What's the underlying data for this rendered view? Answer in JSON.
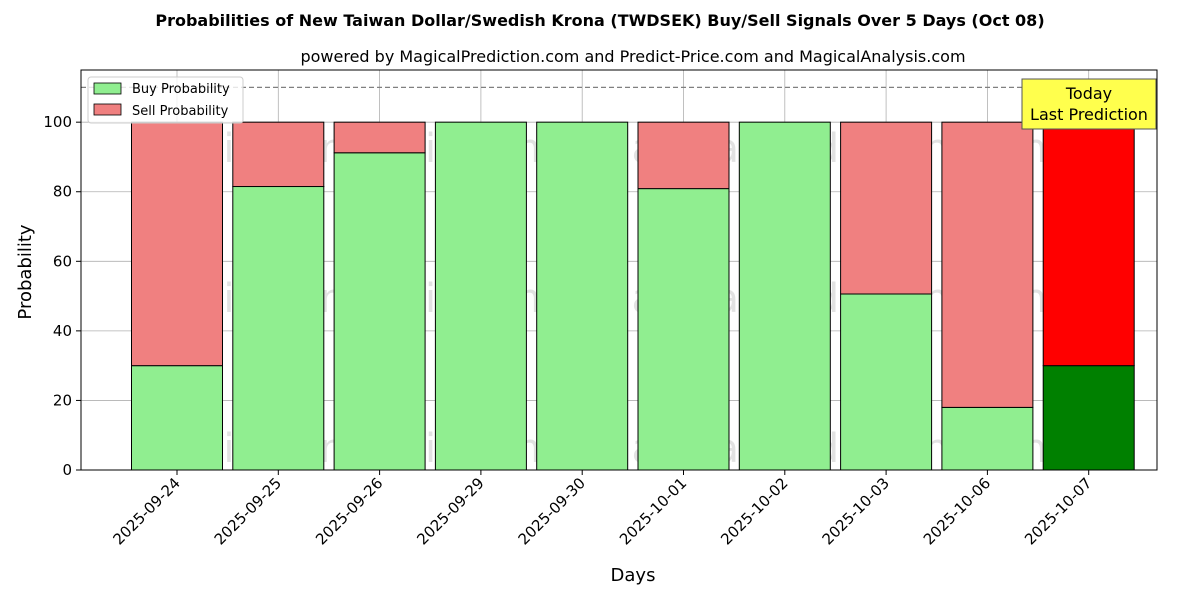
{
  "chart_data": {
    "type": "bar",
    "stacked": true,
    "title": "Probabilities of New Taiwan Dollar/Swedish Krona (TWDSEK) Buy/Sell Signals Over 5 Days (Oct 08)",
    "subtitle": "powered by MagicalPrediction.com and Predict-Price.com and MagicalAnalysis.com",
    "xlabel": "Days",
    "ylabel": "Probability",
    "ylim": [
      0,
      115
    ],
    "yticks": [
      0,
      20,
      40,
      60,
      80,
      100
    ],
    "grid": true,
    "legend_position": "top-left",
    "reference_line": 110,
    "categories": [
      "2025-09-24",
      "2025-09-25",
      "2025-09-26",
      "2025-09-29",
      "2025-09-30",
      "2025-10-01",
      "2025-10-02",
      "2025-10-03",
      "2025-10-06",
      "2025-10-07"
    ],
    "series": [
      {
        "name": "Buy Probability",
        "color": "#90ee90",
        "highlight_color": "#008000",
        "values": [
          30,
          81.5,
          91.2,
          100,
          100,
          80.9,
          100,
          50.6,
          18,
          30
        ]
      },
      {
        "name": "Sell Probability",
        "color": "#f08080",
        "highlight_color": "#ff0000",
        "values": [
          70,
          18.5,
          8.8,
          0,
          0,
          19.1,
          0,
          49.4,
          82,
          70
        ]
      }
    ],
    "highlight_index": 9,
    "annotation": {
      "line1": "Today",
      "line2": "Last Prediction",
      "color": "#ffff4d"
    },
    "watermarks": [
      "MagicalAnalysis.com",
      "MagicalPrediction.com"
    ]
  }
}
